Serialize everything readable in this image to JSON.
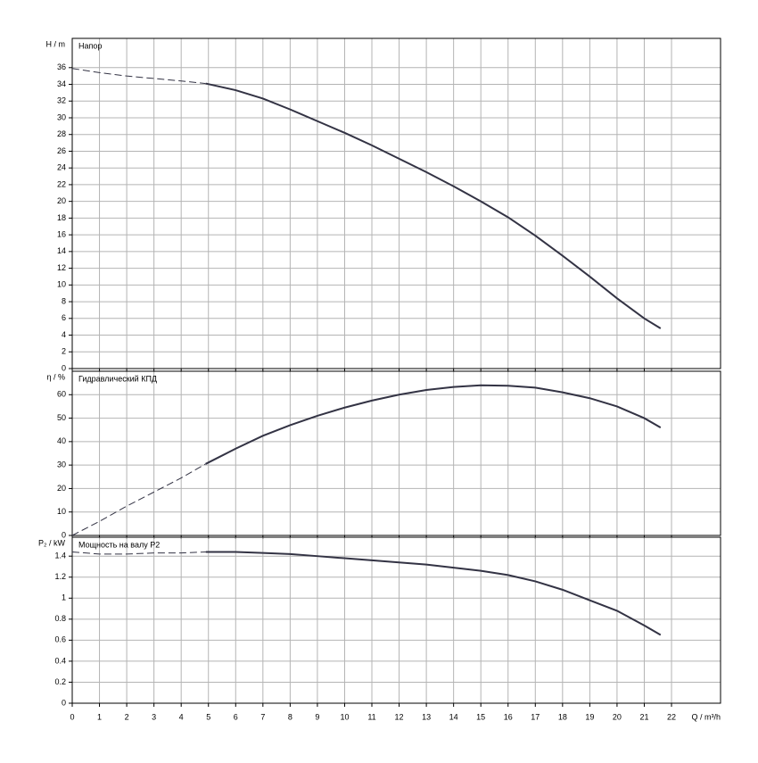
{
  "chart_data": [
    {
      "type": "line",
      "title": "Напор",
      "ylabel": "H / m",
      "xlim": [
        0,
        23.8
      ],
      "xticks": [
        0,
        1,
        2,
        3,
        4,
        5,
        6,
        7,
        8,
        9,
        10,
        11,
        12,
        13,
        14,
        15,
        16,
        17,
        18,
        19,
        20,
        21,
        22
      ],
      "ylim": [
        0,
        39.5
      ],
      "yticks": [
        0,
        2,
        4,
        6,
        8,
        10,
        12,
        14,
        16,
        18,
        20,
        22,
        24,
        26,
        28,
        30,
        32,
        34,
        36
      ],
      "grid": true,
      "series": [
        {
          "color": "#333344",
          "line_style": "dashed",
          "x": [
            0,
            1,
            2,
            3,
            4,
            4.9
          ],
          "values": [
            35.9,
            35.4,
            35.0,
            34.7,
            34.4,
            34.1
          ]
        },
        {
          "color": "#333344",
          "line_style": "solid",
          "x": [
            4.9,
            6,
            7,
            8,
            9,
            10,
            11,
            12,
            13,
            14,
            15,
            16,
            17,
            18,
            19,
            20,
            21,
            21.6
          ],
          "values": [
            34.1,
            33.3,
            32.3,
            31.0,
            29.6,
            28.2,
            26.7,
            25.1,
            23.5,
            21.8,
            20.0,
            18.1,
            15.9,
            13.5,
            11.0,
            8.4,
            6.0,
            4.8
          ]
        }
      ]
    },
    {
      "type": "line",
      "title": "Гидравлический КПД",
      "ylabel": "η / %",
      "xlim": [
        0,
        23.8
      ],
      "xticks": [
        0,
        1,
        2,
        3,
        4,
        5,
        6,
        7,
        8,
        9,
        10,
        11,
        12,
        13,
        14,
        15,
        16,
        17,
        18,
        19,
        20,
        21,
        22
      ],
      "ylim": [
        0,
        70
      ],
      "yticks": [
        0,
        10,
        20,
        30,
        40,
        50,
        60
      ],
      "grid": true,
      "series": [
        {
          "color": "#333344",
          "line_style": "dashed",
          "x": [
            0,
            1,
            2,
            3,
            4,
            4.9
          ],
          "values": [
            0,
            6,
            12.5,
            18.5,
            24.5,
            30.5
          ]
        },
        {
          "color": "#333344",
          "line_style": "solid",
          "x": [
            4.9,
            6,
            7,
            8,
            9,
            10,
            11,
            12,
            13,
            14,
            15,
            16,
            17,
            18,
            19,
            20,
            21,
            21.6
          ],
          "values": [
            30.5,
            37,
            42.5,
            47,
            51,
            54.5,
            57.5,
            60,
            62,
            63.3,
            64,
            63.8,
            63,
            61,
            58.5,
            55,
            50,
            46
          ]
        }
      ]
    },
    {
      "type": "line",
      "title": "Мощность на валу P2",
      "ylabel": "P₂ / kW",
      "xlabel": "Q / m³/h",
      "xlim": [
        0,
        23.8
      ],
      "xticks": [
        0,
        1,
        2,
        3,
        4,
        5,
        6,
        7,
        8,
        9,
        10,
        11,
        12,
        13,
        14,
        15,
        16,
        17,
        18,
        19,
        20,
        21,
        22
      ],
      "ylim": [
        0,
        1.58
      ],
      "yticks": [
        0,
        0.2,
        0.4,
        0.6,
        0.8,
        1,
        1.2,
        1.4
      ],
      "grid": true,
      "series": [
        {
          "color": "#333344",
          "line_style": "dashed",
          "x": [
            0,
            1,
            2,
            3,
            4,
            4.9
          ],
          "values": [
            1.44,
            1.42,
            1.42,
            1.43,
            1.43,
            1.44
          ]
        },
        {
          "color": "#333344",
          "line_style": "solid",
          "x": [
            4.9,
            6,
            7,
            8,
            9,
            10,
            11,
            12,
            13,
            14,
            15,
            16,
            17,
            18,
            19,
            20,
            21,
            21.6
          ],
          "values": [
            1.44,
            1.44,
            1.43,
            1.42,
            1.4,
            1.38,
            1.36,
            1.34,
            1.32,
            1.29,
            1.26,
            1.22,
            1.16,
            1.08,
            0.98,
            0.88,
            0.74,
            0.65
          ]
        }
      ]
    }
  ]
}
